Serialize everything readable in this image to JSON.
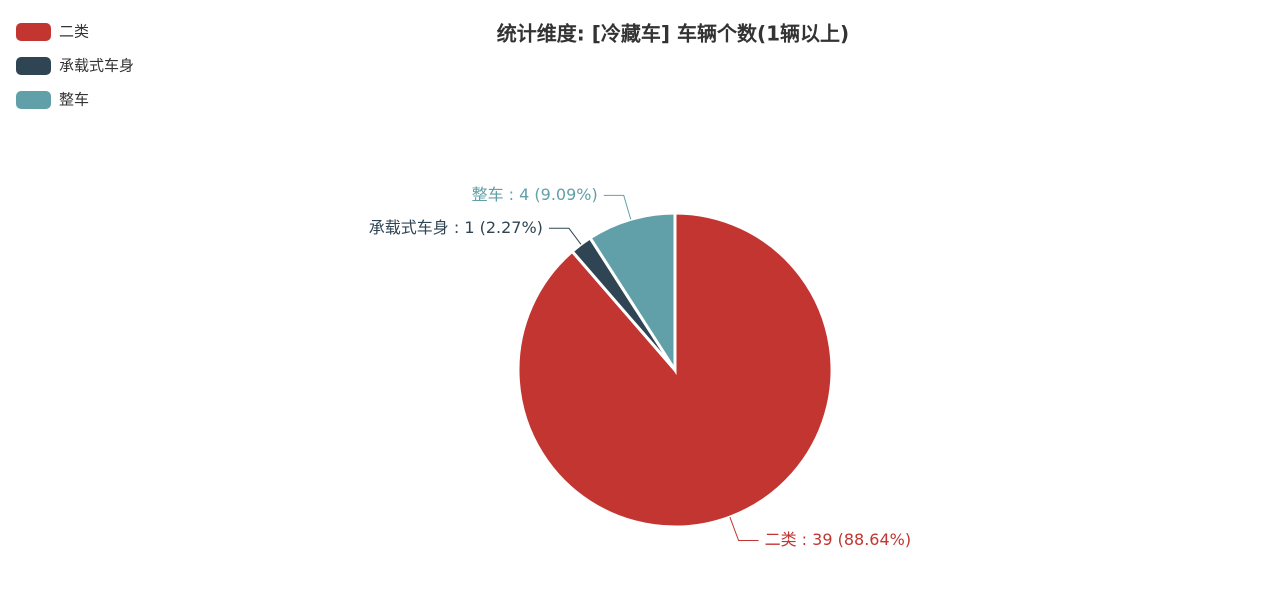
{
  "chart_data": {
    "type": "pie",
    "title": "统计维度: [冷藏车] 车辆个数(1辆以上)",
    "categories": [
      "二类",
      "承载式车身",
      "整车"
    ],
    "values": [
      39,
      1,
      4
    ],
    "value_labels": [
      "二类 : 39 (88.64%)",
      "承载式车身 : 1 (2.27%)",
      "整车 : 4 (9.09%)"
    ],
    "colors": [
      "#c23531",
      "#2f4554",
      "#61a0a8"
    ],
    "legend": "top-left"
  }
}
